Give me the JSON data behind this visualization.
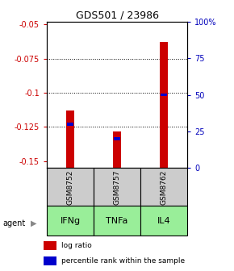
{
  "title": "GDS501 / 23986",
  "samples": [
    "GSM8752",
    "GSM8757",
    "GSM8762"
  ],
  "agents": [
    "IFNg",
    "TNFa",
    "IL4"
  ],
  "log_ratios": [
    -0.113,
    -0.128,
    -0.063
  ],
  "percentile_ranks": [
    30,
    20,
    50
  ],
  "ylim_left": [
    -0.155,
    -0.048
  ],
  "ylim_right": [
    0,
    100
  ],
  "yticks_left": [
    -0.15,
    -0.125,
    -0.1,
    -0.075,
    -0.05
  ],
  "yticks_right": [
    0,
    25,
    50,
    75,
    100
  ],
  "ytick_labels_left": [
    "-0.15",
    "-0.125",
    "-0.1",
    "-0.075",
    "-0.05"
  ],
  "ytick_labels_right": [
    "0",
    "25",
    "50",
    "75",
    "100%"
  ],
  "bar_bottom": -0.155,
  "bar_color_red": "#cc0000",
  "bar_color_blue": "#0000cc",
  "sample_box_color": "#cccccc",
  "agent_box_color": "#99ee99",
  "left_color": "#cc0000",
  "right_color": "#0000bb",
  "bar_width": 0.18
}
